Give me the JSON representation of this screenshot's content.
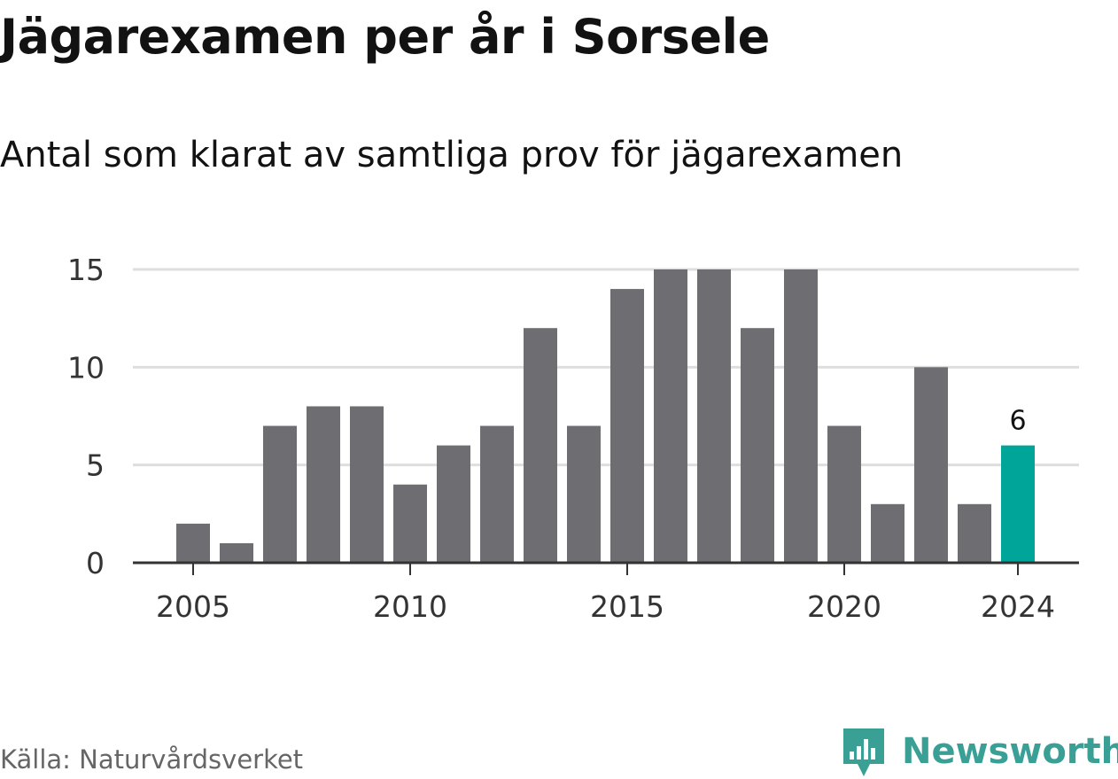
{
  "title": "Jägarexamen per år i Sorsele",
  "subtitle": "Antal som klarat av samtliga prov för jägarexamen",
  "source": "Källa: Naturvårdsverket",
  "brand": {
    "name": "Newsworthy",
    "icon": "newsworthy-bar-chart-icon",
    "color": "#3a9f95"
  },
  "colors": {
    "bar": "#6e6d72",
    "highlight": "#00a59a",
    "grid": "#dedede",
    "axis": "#333333"
  },
  "chart_data": {
    "type": "bar",
    "categories": [
      2005,
      2006,
      2007,
      2008,
      2009,
      2010,
      2011,
      2012,
      2013,
      2014,
      2015,
      2016,
      2017,
      2018,
      2019,
      2020,
      2021,
      2022,
      2023,
      2024
    ],
    "values": [
      2,
      1,
      7,
      8,
      8,
      4,
      6,
      7,
      12,
      7,
      14,
      15,
      15,
      12,
      15,
      7,
      3,
      10,
      3,
      6
    ],
    "title": "Jägarexamen per år i Sorsele",
    "subtitle": "Antal som klarat av samtliga prov för jägarexamen",
    "xlabel": "",
    "ylabel": "",
    "ylim": [
      0,
      15
    ],
    "yticks": [
      0,
      5,
      10,
      15
    ],
    "xticks": [
      2005,
      2010,
      2015,
      2020,
      2024
    ],
    "highlight": {
      "category": 2024,
      "label": "6"
    },
    "grid": true,
    "legend": false
  }
}
